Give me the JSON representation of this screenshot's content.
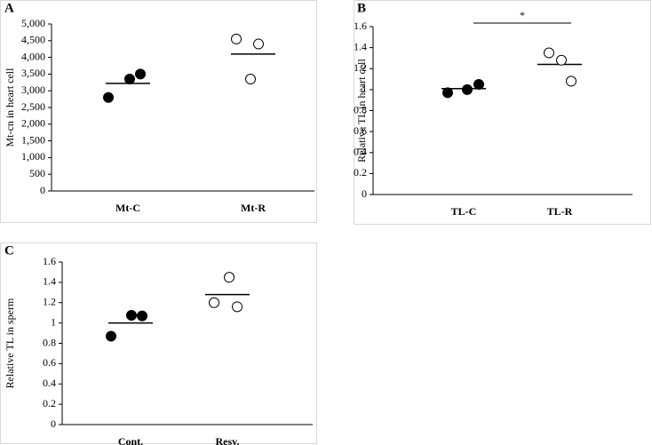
{
  "chart_data": [
    {
      "type": "dot",
      "panel": "A",
      "ylabel": "Mt-cn in heart cell",
      "categories": [
        "Mt-C",
        "Mt-R"
      ],
      "points": [
        [
          2800,
          3350,
          3500
        ],
        [
          4550,
          4400,
          3350
        ]
      ],
      "means": [
        3220,
        4100
      ],
      "fills": [
        "#000000",
        "#ffffff"
      ],
      "ylim": [
        0,
        5000
      ],
      "yticks": [
        0,
        500,
        {
          "value": 1000,
          "label": "1,000"
        },
        {
          "value": 1500,
          "label": "1,500"
        },
        {
          "value": 2000,
          "label": "2,000"
        },
        {
          "value": 2500,
          "label": "2,500"
        },
        {
          "value": 3000,
          "label": "3,000"
        },
        {
          "value": 3500,
          "label": "3,500"
        },
        {
          "value": 4000,
          "label": "4,000"
        },
        {
          "value": 4500,
          "label": "4,500"
        },
        {
          "value": 5000,
          "label": "5,000"
        }
      ]
    },
    {
      "type": "dot",
      "panel": "B",
      "ylabel": "Relative TL in heart cell",
      "categories": [
        "TL-C",
        "TL-R"
      ],
      "points": [
        [
          0.97,
          1.0,
          1.05
        ],
        [
          1.35,
          1.28,
          1.08
        ]
      ],
      "means": [
        1.01,
        1.24
      ],
      "fills": [
        "#000000",
        "#ffffff"
      ],
      "ylim": [
        0,
        1.6
      ],
      "yticks": [
        0,
        0.2,
        0.4,
        0.6,
        0.8,
        1,
        1.2,
        1.4,
        1.6
      ],
      "annotation": "*"
    },
    {
      "type": "dot",
      "panel": "C",
      "ylabel": "Relative TL in sperm",
      "categories": [
        "Cont.",
        "Resv."
      ],
      "points": [
        [
          0.87,
          1.075,
          1.07
        ],
        [
          1.2,
          1.45,
          1.16
        ]
      ],
      "means": [
        1.0,
        1.28
      ],
      "fills": [
        "#000000",
        "#ffffff"
      ],
      "ylim": [
        0,
        1.6
      ],
      "yticks": [
        0,
        0.2,
        0.4,
        0.6,
        0.8,
        1,
        1.2,
        1.4,
        1.6
      ]
    }
  ]
}
